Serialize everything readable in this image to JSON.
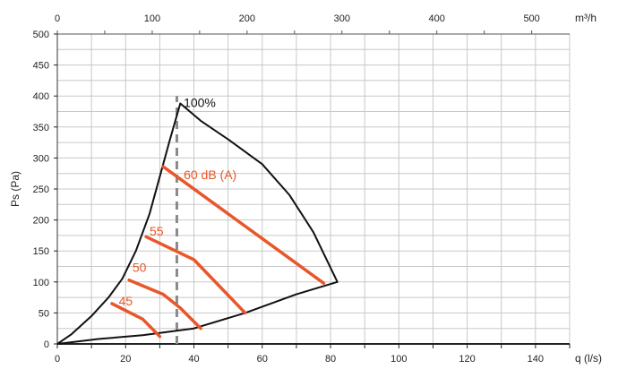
{
  "chart_data": {
    "type": "line",
    "xlabel": "q (l/s)",
    "ylabel": "Ps (Pa)",
    "x2label": "m³/h",
    "xlim": [
      0,
      150
    ],
    "ylim": [
      0,
      500
    ],
    "x2lim": [
      0,
      540
    ],
    "x_ticks": [
      0,
      20,
      40,
      60,
      80,
      100,
      120,
      140
    ],
    "y_ticks": [
      0,
      50,
      100,
      150,
      200,
      250,
      300,
      350,
      400,
      450,
      500
    ],
    "x2_ticks": [
      0,
      100,
      200,
      300,
      400,
      500
    ],
    "grid": true,
    "colors": {
      "envelope": "#111111",
      "sound": "#e8572a",
      "marker": "#8a8a8a",
      "grid": "#c8c8c8"
    },
    "envelope": {
      "label": "100%",
      "points": [
        [
          0,
          0
        ],
        [
          4,
          15
        ],
        [
          10,
          45
        ],
        [
          15,
          75
        ],
        [
          19,
          105
        ],
        [
          23,
          150
        ],
        [
          27,
          210
        ],
        [
          30,
          270
        ],
        [
          33,
          330
        ],
        [
          36,
          388
        ],
        [
          42,
          360
        ],
        [
          50,
          330
        ],
        [
          60,
          290
        ],
        [
          68,
          240
        ],
        [
          75,
          180
        ],
        [
          82,
          100
        ],
        [
          70,
          80
        ],
        [
          55,
          50
        ],
        [
          40,
          25
        ],
        [
          25,
          14
        ],
        [
          12,
          8
        ],
        [
          0,
          0
        ]
      ]
    },
    "marker_line": {
      "x": 35,
      "y_range": [
        0,
        400
      ]
    },
    "series": [
      {
        "name": "60 dB (A)",
        "points": [
          [
            31,
            286
          ],
          [
            78,
            98
          ]
        ]
      },
      {
        "name": "55",
        "points": [
          [
            26,
            173
          ],
          [
            40,
            136
          ],
          [
            55,
            50
          ]
        ]
      },
      {
        "name": "50",
        "points": [
          [
            21,
            103
          ],
          [
            31,
            80
          ],
          [
            36,
            58
          ],
          [
            42,
            25
          ]
        ]
      },
      {
        "name": "45",
        "points": [
          [
            16,
            65
          ],
          [
            25,
            40
          ],
          [
            30,
            12
          ]
        ]
      }
    ],
    "annotations": [
      {
        "text": "100%",
        "at": [
          37,
          382
        ],
        "color": "#111111"
      },
      {
        "text": "60 dB (A)",
        "at": [
          37,
          266
        ],
        "color": "#e8572a"
      },
      {
        "text": "55",
        "at": [
          27,
          175
        ],
        "color": "#e8572a"
      },
      {
        "text": "50",
        "at": [
          22,
          116
        ],
        "color": "#e8572a"
      },
      {
        "text": "45",
        "at": [
          18,
          62
        ],
        "color": "#e8572a"
      }
    ]
  }
}
